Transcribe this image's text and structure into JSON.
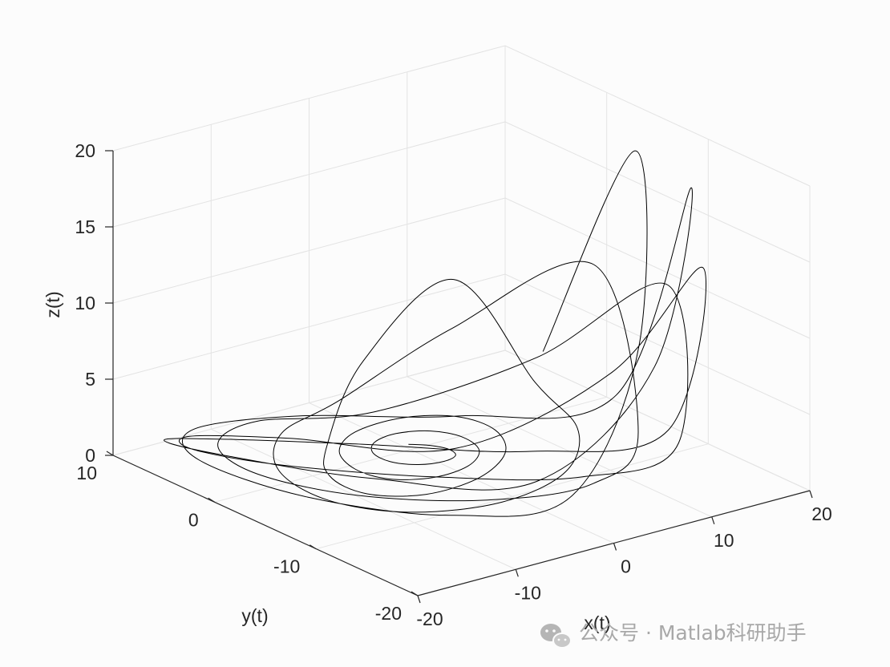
{
  "chart_data": {
    "type": "line",
    "dimensions": 3,
    "title": "",
    "xlabel": "x(t)",
    "ylabel": "y(t)",
    "zlabel": "z(t)",
    "xlim": [
      -20,
      20
    ],
    "ylim": [
      -20,
      10
    ],
    "zlim": [
      0,
      20
    ],
    "xticks": [
      "-20",
      "-10",
      "0",
      "10",
      "20"
    ],
    "yticks": [
      "-20",
      "-10",
      "0",
      "10"
    ],
    "zticks": [
      "0",
      "5",
      "10",
      "15",
      "20"
    ],
    "grid": true,
    "series": [
      {
        "color": "#000000",
        "x": [
          0.6,
          1.8,
          2.5,
          2.1,
          0.5,
          -1.6,
          -3.0,
          -2.9,
          -1.3,
          1.3,
          3.9,
          5.1,
          4.3,
          1.4,
          -2.4,
          -5.5,
          -6.3,
          -4.8,
          -1.1,
          3.9,
          7.6,
          8.2,
          5.6,
          0.4,
          -5.3,
          -9.0,
          -8.9,
          -4.8,
          1.9,
          10.6,
          15.3,
          13.5,
          6.9,
          -1.4,
          -8.7,
          -12.4,
          -11.4,
          -6.0,
          1.6,
          9.4,
          16.4,
          14.1,
          6.8,
          -2.1,
          -9.8,
          -13.3,
          -11.8,
          -6.0,
          2.1,
          10.4,
          16.6,
          14.8,
          7.0,
          -2.2,
          -10.3,
          -14.0,
          -12.4,
          -6.2,
          2.1,
          10.6,
          16.8,
          15.3,
          7.3,
          -2.4,
          -10.8,
          -14.6,
          -12.9,
          -6.4,
          2.4,
          11.3,
          17.2,
          15.8,
          7.6,
          -2.5,
          -11.2,
          -15.1,
          -13.3,
          -6.5,
          2.5,
          11.5,
          17.5,
          16.3
        ],
        "y": [
          0.8,
          -0.1,
          -1.3,
          -2.4,
          -2.8,
          -2.3,
          -0.9,
          0.9,
          2.3,
          2.7,
          1.8,
          -0.2,
          -2.6,
          -4.3,
          -4.6,
          -3.2,
          -0.6,
          2.4,
          4.4,
          4.6,
          2.8,
          -0.4,
          -3.9,
          -6.3,
          -6.6,
          -4.4,
          -0.6,
          3.6,
          6.5,
          6.0,
          2.5,
          -3.4,
          -8.6,
          -10.4,
          -8.5,
          -3.9,
          2.0,
          6.9,
          8.6,
          5.0,
          -2.2,
          -8.8,
          -11.4,
          -9.6,
          -4.3,
          2.3,
          7.6,
          9.4,
          5.6,
          -2.4,
          -9.3,
          -12.1,
          -10.1,
          -4.6,
          2.4,
          7.9,
          9.8,
          5.9,
          -2.5,
          -9.6,
          -12.6,
          -10.6,
          -4.8,
          2.5,
          8.3,
          10.2,
          6.1,
          -2.6,
          -10.1,
          -13.1,
          -11.0,
          -5.0,
          2.6,
          8.6,
          10.6,
          6.3,
          -2.7,
          -10.4,
          -13.5,
          -11.4,
          -5.2,
          2.7
        ],
        "z": [
          0.0,
          0.0,
          0.0,
          0.0,
          0.0,
          0.0,
          0.0,
          0.0,
          0.0,
          0.0,
          0.0,
          0.0,
          0.0,
          0.0,
          0.0,
          0.0,
          0.0,
          0.0,
          0.0,
          0.0,
          0.0,
          0.0,
          0.0,
          0.0,
          0.0,
          0.0,
          0.0,
          0.0,
          3.5,
          7.5,
          1.0,
          0.1,
          0.0,
          0.0,
          0.0,
          0.0,
          0.0,
          0.0,
          0.3,
          4.8,
          10.0,
          1.4,
          0.1,
          0.0,
          0.0,
          0.0,
          0.0,
          0.0,
          0.4,
          5.0,
          10.8,
          1.6,
          0.1,
          0.0,
          0.0,
          0.0,
          0.0,
          0.0,
          0.5,
          6.2,
          12.9,
          1.9,
          0.1,
          0.0,
          0.0,
          0.0,
          0.0,
          0.0,
          0.6,
          7.5,
          17.6,
          2.4,
          0.1,
          0.0,
          0.0,
          0.0,
          0.0,
          0.0,
          0.7,
          8.4,
          18.2,
          2.8
        ]
      }
    ]
  },
  "watermark": {
    "text": "公众号 · Matlab科研助手",
    "icon": "wechat-icon"
  }
}
